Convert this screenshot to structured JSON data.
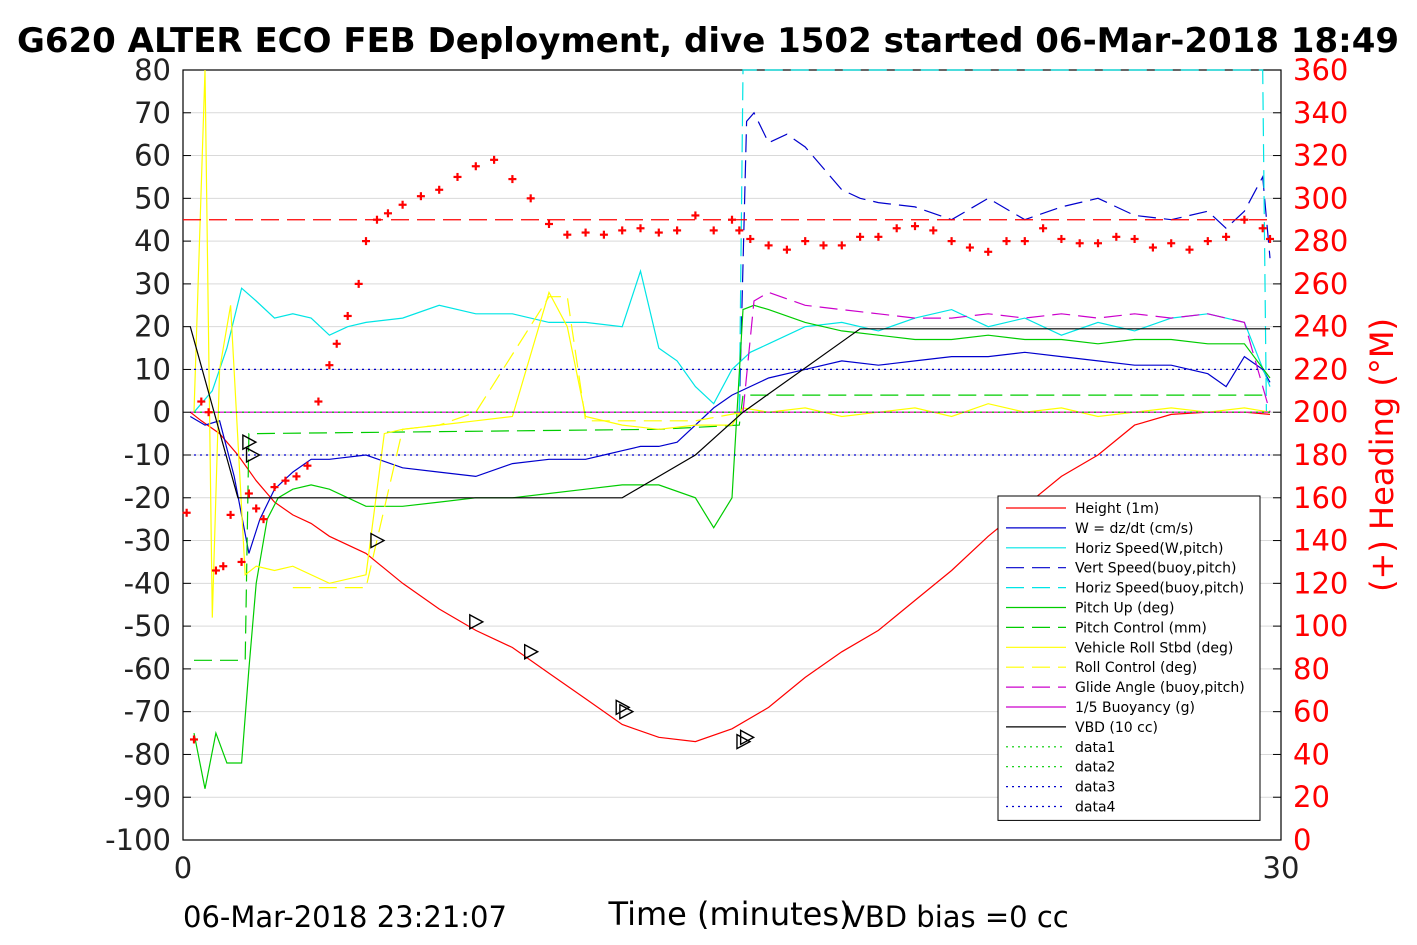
{
  "colors": {
    "height": "#ff0000",
    "w": "#0000cd",
    "horiz_speed": "#00e5e5",
    "vert_speed_buoy": "#0000cd",
    "horiz_speed_buoy": "#00e5e5",
    "pitch": "#00cc00",
    "pitch_control": "#00cc00",
    "roll": "#ffff00",
    "roll_control": "#ffff00",
    "glide_angle": "#cc00cc",
    "buoyancy": "#cc00cc",
    "vbd": "#000000",
    "heading": "#ff0000",
    "right_axis": "#ff0000",
    "grid": "#d9d9d9"
  },
  "chart_data": {
    "type": "line",
    "title": "G620 ALTER ECO FEB Deployment, dive 1502 started 06-Mar-2018 18:49",
    "xlabel": "Time (minutes)",
    "ylabel": "",
    "y2label": "(+) Heading (°M)",
    "xlim": [
      0,
      30
    ],
    "ylim": [
      -100,
      80
    ],
    "y2lim": [
      0,
      360
    ],
    "xticks": [
      "0",
      "30"
    ],
    "yticks": [
      "80",
      "70",
      "60",
      "50",
      "40",
      "30",
      "20",
      "10",
      "0",
      "-10",
      "-20",
      "-30",
      "-40",
      "-50",
      "-60",
      "-70",
      "-80",
      "-90",
      "-100"
    ],
    "y2ticks": [
      "360",
      "340",
      "320",
      "300",
      "280",
      "260",
      "240",
      "220",
      "200",
      "180",
      "160",
      "140",
      "120",
      "100",
      "80",
      "60",
      "40",
      "20",
      "0"
    ],
    "grid": true,
    "legend_position": "bottom-right",
    "footer_left": "06-Mar-2018 23:21:07",
    "footer_right": "VBD bias =0 cc",
    "series": [
      {
        "name": "Height (1m)",
        "style": "solid",
        "color_key": "height",
        "x": [
          0.2,
          0.5,
          1.0,
          1.5,
          2.0,
          2.5,
          3.0,
          3.5,
          4.0,
          5.0,
          6.0,
          7.0,
          8.0,
          9.0,
          10.0,
          11.0,
          12.0,
          13.0,
          14.0,
          15.0,
          16.0,
          17.0,
          18.0,
          19.0,
          20.0,
          21.0,
          22.0,
          23.0,
          24.0,
          25.0,
          26.0,
          27.0,
          28.0,
          29.0,
          29.7
        ],
        "y": [
          0,
          -2,
          -5,
          -10,
          -16,
          -21,
          -24,
          -26,
          -29,
          -33,
          -40,
          -46,
          -51,
          -55,
          -61,
          -67,
          -73,
          -76,
          -77,
          -74,
          -69,
          -62,
          -56,
          -51,
          -44,
          -37,
          -29,
          -22,
          -15,
          -10,
          -3,
          -0.5,
          0,
          0,
          -0.5
        ]
      },
      {
        "name": "W = dz/dt (cm/s)",
        "style": "solid",
        "color_key": "w",
        "x": [
          0.2,
          0.6,
          1.0,
          1.4,
          1.8,
          2.1,
          2.5,
          3.0,
          3.5,
          4.0,
          5.0,
          6.0,
          7.0,
          8.0,
          9.0,
          10.0,
          11.0,
          11.5,
          12.0,
          12.5,
          13.0,
          13.5,
          14.0,
          14.5,
          15.0,
          16.0,
          17.0,
          18.0,
          19.0,
          20.0,
          21.0,
          22.0,
          23.0,
          24.0,
          25.0,
          26.0,
          27.0,
          28.0,
          28.5,
          29.0,
          29.5,
          29.7
        ],
        "y": [
          -1,
          -3,
          -2,
          -15,
          -33,
          -25,
          -18,
          -14,
          -11,
          -11,
          -10,
          -13,
          -14,
          -15,
          -12,
          -11,
          -11,
          -10,
          -9,
          -8,
          -8,
          -7,
          -3,
          1,
          4,
          8,
          10,
          12,
          11,
          12,
          13,
          13,
          14,
          13,
          12,
          11,
          11,
          9,
          6,
          13,
          10,
          7
        ]
      },
      {
        "name": "Horiz Speed(W,pitch)",
        "style": "solid",
        "color_key": "horiz_speed",
        "x": [
          0.3,
          0.8,
          1.2,
          1.6,
          2.0,
          2.5,
          3.0,
          3.5,
          4.0,
          4.5,
          5.0,
          6.0,
          7.0,
          8.0,
          9.0,
          10.0,
          11.0,
          12.0,
          12.5,
          13.0,
          13.5,
          14.0,
          14.5,
          15.0,
          15.5,
          16.0,
          17.0,
          18.0,
          19.0,
          20.0,
          21.0,
          22.0,
          23.0,
          24.0,
          25.0,
          26.0,
          27.0,
          28.0,
          29.0,
          29.7
        ],
        "y": [
          0,
          5,
          15,
          29,
          26,
          22,
          23,
          22,
          18,
          20,
          21,
          22,
          25,
          23,
          23,
          21,
          21,
          20,
          33,
          15,
          12,
          6,
          2,
          10,
          14,
          16,
          20,
          21,
          19,
          22,
          24,
          20,
          22,
          18,
          21,
          19,
          22,
          23,
          21,
          6
        ]
      },
      {
        "name": "Vert Speed(buoy,pitch)",
        "style": "dashed",
        "color_key": "vert_speed_buoy",
        "x": [
          15.2,
          15.4,
          15.6,
          16.0,
          16.5,
          17.0,
          17.5,
          18.0,
          18.5,
          19.0,
          20.0,
          21.0,
          22.0,
          23.0,
          24.0,
          25.0,
          26.0,
          27.0,
          28.0,
          28.5,
          29.0,
          29.5,
          29.7
        ],
        "y": [
          0,
          68,
          70,
          63,
          65,
          62,
          57,
          52,
          50,
          49,
          48,
          45,
          50,
          45,
          48,
          50,
          46,
          45,
          47,
          43,
          47,
          55,
          36
        ]
      },
      {
        "name": "Horiz Speed(buoy,pitch)",
        "style": "dashed",
        "color_key": "horiz_speed_buoy",
        "x": [
          15.2,
          15.3,
          29.5,
          29.6
        ],
        "y": [
          0,
          80,
          80,
          0
        ]
      },
      {
        "name": "Pitch Up (deg)",
        "style": "solid",
        "color_key": "pitch",
        "x": [
          0.3,
          0.6,
          0.9,
          1.2,
          1.6,
          1.8,
          2.0,
          2.3,
          2.6,
          3.0,
          3.5,
          4.0,
          5.0,
          6.0,
          7.0,
          8.0,
          9.0,
          10.0,
          11.0,
          12.0,
          13.0,
          14.0,
          14.5,
          15.0,
          15.3,
          15.6,
          16.0,
          17.0,
          18.0,
          19.0,
          20.0,
          21.0,
          22.0,
          23.0,
          24.0,
          25.0,
          26.0,
          27.0,
          28.0,
          29.0,
          29.7
        ],
        "y": [
          -75,
          -88,
          -75,
          -82,
          -82,
          -60,
          -40,
          -25,
          -20,
          -18,
          -17,
          -18,
          -22,
          -22,
          -21,
          -20,
          -20,
          -19,
          -18,
          -17,
          -17,
          -20,
          -27,
          -20,
          24,
          25,
          24,
          21,
          19,
          18,
          17,
          17,
          18,
          17,
          17,
          16,
          17,
          17,
          16,
          16,
          8
        ]
      },
      {
        "name": "Pitch Control (mm)",
        "style": "dashed",
        "color_key": "pitch_control",
        "x": [
          0.3,
          1.7,
          1.8,
          2.0,
          13.0,
          15.2,
          15.3,
          29.7
        ],
        "y": [
          -58,
          -58,
          -5,
          -5,
          -4,
          -3,
          4,
          4
        ]
      },
      {
        "name": "Vehicle Roll Stbd (deg)",
        "style": "solid",
        "color_key": "roll",
        "x": [
          0.3,
          0.6,
          0.8,
          1.0,
          1.3,
          1.7,
          2.0,
          2.5,
          3.0,
          4.0,
          5.0,
          5.5,
          6.0,
          7.0,
          8.0,
          9.0,
          10.0,
          10.5,
          11.0,
          12.0,
          13.0,
          14.0,
          15.0,
          15.3,
          16.0,
          17.0,
          18.0,
          19.0,
          20.0,
          21.0,
          22.0,
          23.0,
          24.0,
          25.0,
          26.0,
          27.0,
          28.0,
          29.0,
          29.7
        ],
        "y": [
          0,
          80,
          -48,
          10,
          25,
          -38,
          -36,
          -37,
          -36,
          -40,
          -38,
          -5,
          -4,
          -3,
          -2,
          -1,
          28,
          20,
          -1,
          -3,
          -4,
          -3,
          -3,
          1,
          0,
          1,
          -1,
          0,
          1,
          -1,
          2,
          0,
          1,
          -1,
          0,
          1,
          0,
          1,
          0
        ]
      },
      {
        "name": "Roll Control (deg)",
        "style": "dashed",
        "color_key": "roll_control",
        "x": [
          3.0,
          5.0,
          6.0,
          7.0,
          8.0,
          10.0,
          10.5,
          11.0,
          14.0,
          15.3,
          29.7
        ],
        "y": [
          -41,
          -41,
          -4,
          -3,
          0,
          27,
          27,
          -2,
          -2,
          0,
          0
        ]
      },
      {
        "name": "Glide Angle (buoy,pitch)",
        "style": "dashed",
        "color_key": "glide_angle",
        "x": [
          15.3,
          15.6,
          16.0,
          17.0,
          18.0,
          19.0,
          20.0,
          21.0,
          22.0,
          23.0,
          24.0,
          25.0,
          26.0,
          27.0,
          28.0,
          29.0,
          29.7
        ],
        "y": [
          0,
          26,
          28,
          25,
          24,
          23,
          22,
          22,
          23,
          22,
          23,
          22,
          23,
          22,
          23,
          21,
          0
        ]
      },
      {
        "name": "1/5 Buoyancy (g)",
        "style": "solid",
        "color_key": "buoyancy",
        "x": [
          0.2,
          15.2,
          15.4,
          29.7
        ],
        "y": [
          0,
          0,
          0,
          0
        ]
      },
      {
        "name": "VBD (10 cc)",
        "style": "solid",
        "color_key": "vbd",
        "x": [
          0.2,
          1.5,
          12.0,
          14.0,
          15.3,
          18.5,
          29.7
        ],
        "y": [
          20,
          -20,
          -20,
          -10,
          0,
          19.5,
          19.5
        ]
      },
      {
        "name": "data1",
        "style": "dotted",
        "color_key": "pitch",
        "x": [
          0.3,
          29.7
        ],
        "y": [
          0,
          0
        ]
      },
      {
        "name": "data2",
        "style": "dotted",
        "color_key": "pitch",
        "x": [
          0.3,
          29.7
        ],
        "y": [
          0,
          0
        ]
      },
      {
        "name": "data3",
        "style": "dotted",
        "color_key": "w",
        "x": [
          0.3,
          29.7
        ],
        "y": [
          10,
          10
        ]
      },
      {
        "name": "data4",
        "style": "dotted",
        "color_key": "w",
        "x": [
          0.3,
          29.7
        ],
        "y": [
          -10,
          -10
        ]
      }
    ],
    "heading_series": {
      "marker": "+",
      "target_heading": 290,
      "x": [
        0.1,
        0.3,
        0.5,
        0.7,
        0.9,
        1.1,
        1.3,
        1.6,
        1.8,
        2.0,
        2.2,
        2.5,
        2.8,
        3.1,
        3.4,
        3.7,
        4.0,
        4.2,
        4.5,
        4.8,
        5.0,
        5.3,
        5.6,
        6.0,
        6.5,
        7.0,
        7.5,
        8.0,
        8.5,
        9.0,
        9.5,
        10.0,
        10.5,
        11.0,
        11.5,
        12.0,
        12.5,
        13.0,
        13.5,
        14.0,
        14.5,
        15.0,
        15.2,
        15.5,
        16.0,
        16.5,
        17.0,
        17.5,
        18.0,
        18.5,
        19.0,
        19.5,
        20.0,
        20.5,
        21.0,
        21.5,
        22.0,
        22.5,
        23.0,
        23.5,
        24.0,
        24.5,
        25.0,
        25.5,
        26.0,
        26.5,
        27.0,
        27.5,
        28.0,
        28.5,
        29.0,
        29.5,
        29.7
      ],
      "y": [
        153,
        47,
        205,
        200,
        126,
        128,
        152,
        130,
        162,
        155,
        150,
        165,
        168,
        170,
        175,
        205,
        222,
        232,
        245,
        260,
        280,
        290,
        293,
        297,
        301,
        304,
        310,
        315,
        318,
        309,
        300,
        288,
        283,
        284,
        283,
        285,
        286,
        284,
        285,
        292,
        285,
        290,
        285,
        281,
        278,
        276,
        280,
        278,
        278,
        282,
        282,
        286,
        287,
        285,
        280,
        277,
        275,
        280,
        280,
        286,
        281,
        279,
        279,
        282,
        281,
        277,
        279,
        276,
        280,
        282,
        290,
        286,
        281
      ]
    },
    "triangle_markers": [
      {
        "x": 1.8,
        "y": -7
      },
      {
        "x": 1.9,
        "y": -10
      },
      {
        "x": 5.3,
        "y": -30
      },
      {
        "x": 8.0,
        "y": -49
      },
      {
        "x": 9.5,
        "y": -56
      },
      {
        "x": 12.0,
        "y": -69
      },
      {
        "x": 12.1,
        "y": -70
      },
      {
        "x": 15.3,
        "y": -77
      },
      {
        "x": 15.4,
        "y": -76
      }
    ]
  }
}
